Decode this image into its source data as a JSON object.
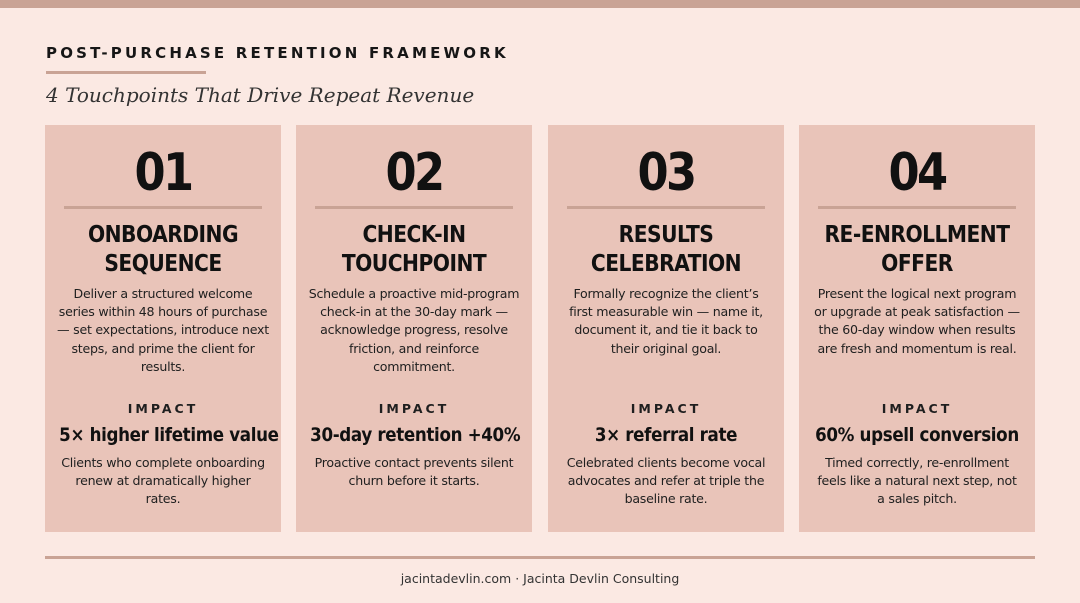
{
  "header": {
    "eyebrow": "POST-PURCHASE RETENTION FRAMEWORK",
    "subtitle": "4 Touchpoints That Drive Repeat Revenue"
  },
  "cards": [
    {
      "number": "01",
      "title": "ONBOARDING SEQUENCE",
      "description": "Deliver a structured welcome series within 48 hours of purchase — set expectations, introduce next steps, and prime the client for results.",
      "impact_label": "IMPACT",
      "impact_metric": "5× higher lifetime value",
      "impact_description": "Clients who complete onboarding renew at dramatically higher rates."
    },
    {
      "number": "02",
      "title": "CHECK-IN TOUCHPOINT",
      "description": "Schedule a proactive mid-program check-in at the 30-day mark — acknowledge progress, resolve friction, and reinforce commitment.",
      "impact_label": "IMPACT",
      "impact_metric": "30-day retention +40%",
      "impact_description": "Proactive contact prevents silent churn before it starts."
    },
    {
      "number": "03",
      "title": "RESULTS CELEBRATION",
      "description": "Formally recognize the client’s first measurable win — name it, document it, and tie it back to their original goal.",
      "impact_label": "IMPACT",
      "impact_metric": "3× referral rate",
      "impact_description": "Celebrated clients become vocal advocates and refer at triple the baseline rate."
    },
    {
      "number": "04",
      "title": "RE-ENROLLMENT OFFER",
      "description": "Present the logical next program or upgrade at peak satisfaction — the 60-day window when results are fresh and momentum is real.",
      "impact_label": "IMPACT",
      "impact_metric": "60% upsell conversion",
      "impact_description": "Timed correctly, re-enrollment feels like a natural next step, not a sales pitch."
    }
  ],
  "footer": {
    "text": "jacintadevlin.com · Jacinta Devlin Consulting"
  },
  "colors": {
    "background": "#fbe9e3",
    "card": "#e9c4b9",
    "accent_rule": "#c9a395",
    "text": "#161616"
  }
}
